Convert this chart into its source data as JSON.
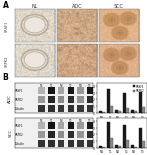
{
  "panel_A_label": "A",
  "panel_B_label": "B",
  "col_labels": [
    "NL",
    "ADC",
    "SCC"
  ],
  "row_labels": [
    "SRSF1",
    "SRPK2"
  ],
  "adc_bar_groups": [
    "N1",
    "T1",
    "N2",
    "T2",
    "N3",
    "T3"
  ],
  "adc_srsf1_values": [
    0.3,
    3.6,
    0.4,
    2.9,
    0.4,
    3.1
  ],
  "adc_srpk2_values": [
    0.2,
    1.1,
    0.3,
    0.8,
    0.3,
    0.9
  ],
  "scc_bar_groups": [
    "N1",
    "T1",
    "N2",
    "T2",
    "N3",
    "T3"
  ],
  "scc_srsf1_values": [
    0.3,
    3.9,
    0.4,
    3.4,
    0.4,
    2.9
  ],
  "scc_srpk2_values": [
    0.2,
    1.4,
    0.3,
    1.2,
    0.2,
    1.0
  ],
  "bar_color_srsf1": "#1a1a1a",
  "bar_color_srpk2": "#888888",
  "background_color": "#ffffff",
  "ylim_bar": [
    0,
    4.5
  ],
  "yticks_bar": [
    0,
    1,
    2,
    3,
    4
  ],
  "adc_row_label": "ADC",
  "scc_row_label": "SCC",
  "sample_labels": [
    "N1",
    "T1",
    "N2",
    "T2",
    "N3",
    "T3"
  ],
  "ihc_nl_srsf1": {
    "bg": "#ddd5c8",
    "lumen_outer": "#b8a898",
    "lumen_inner": "#ece6df"
  },
  "ihc_adc_srsf1": {
    "bg": "#c9a882"
  },
  "ihc_scc_srsf1": {
    "bg": "#d4b48a"
  },
  "ihc_nl_srpk2": {
    "bg": "#ddd6ca",
    "lumen_outer": "#b8a898",
    "lumen_inner": "#ece6df"
  },
  "ihc_adc_srpk2": {
    "bg": "#c8a47e"
  },
  "ihc_scc_srpk2": {
    "bg": "#d2b08c"
  }
}
